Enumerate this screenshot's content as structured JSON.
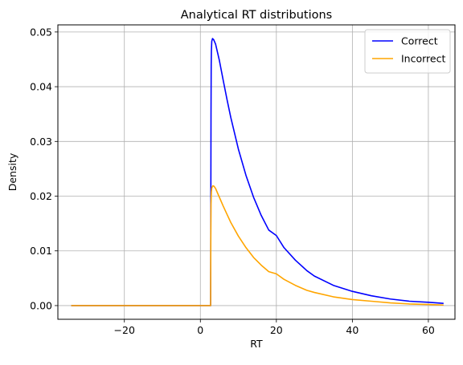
{
  "chart_data": {
    "type": "line",
    "title": "Analytical RT distributions",
    "xlabel": "RT",
    "ylabel": "Density",
    "xlim": [
      -37.5,
      67
    ],
    "ylim": [
      -0.0025,
      0.0513
    ],
    "xticks": [
      -20,
      0,
      20,
      40,
      60
    ],
    "yticks": [
      0.0,
      0.01,
      0.02,
      0.03,
      0.04,
      0.05
    ],
    "xtick_labels": [
      "−20",
      "0",
      "20",
      "40",
      "60"
    ],
    "ytick_labels": [
      "0.00",
      "0.01",
      "0.02",
      "0.03",
      "0.04",
      "0.05"
    ],
    "grid": true,
    "legend_position": "top-right",
    "series": [
      {
        "name": "Correct",
        "color": "#0000ff",
        "x": [
          -34,
          2.7,
          2.75,
          2.8,
          2.85,
          2.9,
          3.0,
          3.2,
          3.5,
          4,
          5,
          6,
          7,
          8,
          10,
          12,
          14,
          16,
          18,
          20,
          22,
          25,
          28,
          30,
          35,
          40,
          45,
          50,
          55,
          60,
          64
        ],
        "y": [
          0,
          0,
          0.018,
          0.035,
          0.044,
          0.0465,
          0.0483,
          0.0488,
          0.0486,
          0.0478,
          0.0448,
          0.0412,
          0.0377,
          0.0344,
          0.0286,
          0.0238,
          0.0198,
          0.0165,
          0.0138,
          0.0128,
          0.0106,
          0.0083,
          0.0064,
          0.0054,
          0.0037,
          0.0026,
          0.0018,
          0.0012,
          0.0008,
          0.0006,
          0.0004
        ]
      },
      {
        "name": "Incorrect",
        "color": "#ffa500",
        "x": [
          -34,
          2.7,
          2.75,
          2.8,
          2.9,
          3.0,
          3.3,
          3.6,
          4,
          5,
          6,
          7,
          8,
          10,
          12,
          14,
          16,
          18,
          20,
          22,
          25,
          28,
          30,
          35,
          40,
          45,
          50,
          55,
          60,
          64
        ],
        "y": [
          0,
          0,
          0.012,
          0.0185,
          0.0208,
          0.0215,
          0.0219,
          0.0218,
          0.0214,
          0.0198,
          0.0182,
          0.0167,
          0.0152,
          0.0127,
          0.0106,
          0.0088,
          0.0074,
          0.0062,
          0.0058,
          0.0048,
          0.0037,
          0.0028,
          0.0024,
          0.0016,
          0.0011,
          0.0008,
          0.0005,
          0.0003,
          0.0002,
          0.0001
        ]
      }
    ]
  }
}
